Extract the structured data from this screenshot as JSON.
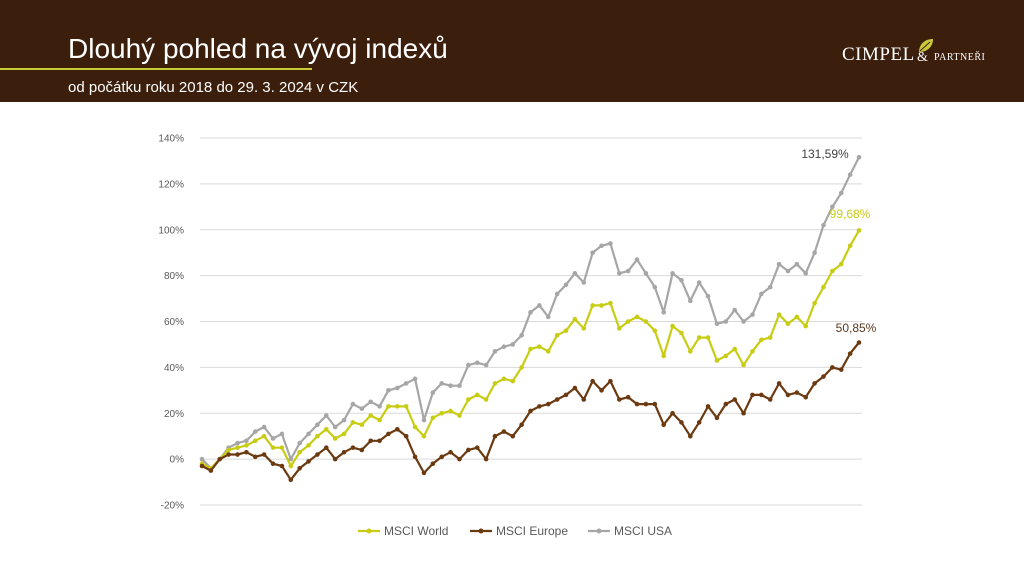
{
  "header": {
    "title": "Dlouhý pohled na vývoj indexů",
    "subtitle": "od počátku roku 2018  do 29. 3. 2024 v CZK",
    "logo_main": "CIMPEL",
    "logo_amp": "&",
    "logo_sub": "PARTNEŘI"
  },
  "colors": {
    "header_bg": "#3b1e0c",
    "accent": "#c9c93a",
    "world": "#c8cc13",
    "europe": "#6b3a10",
    "usa": "#a6a6a6"
  },
  "chart_data": {
    "type": "line",
    "title": "",
    "xlabel": "",
    "ylabel": "",
    "ylim": [
      -20,
      140
    ],
    "yticks": [
      -20,
      0,
      20,
      40,
      60,
      80,
      100,
      120,
      140
    ],
    "ytick_labels": [
      "-20%",
      "0%",
      "20%",
      "40%",
      "60%",
      "80%",
      "100%",
      "120%",
      "140%"
    ],
    "grid": true,
    "legend": "bottom",
    "series": [
      {
        "name": "MSCI World",
        "color": "#c8cc13",
        "values": [
          -2,
          -4,
          0,
          4,
          5,
          6,
          8,
          10,
          5,
          5,
          -3,
          3,
          6,
          10,
          13,
          9,
          11,
          16,
          15,
          19,
          17,
          23,
          23,
          23,
          14,
          10,
          18,
          20,
          21,
          19,
          26,
          28,
          26,
          33,
          35,
          34,
          40,
          48,
          49,
          47,
          54,
          56,
          61,
          57,
          67,
          67,
          68,
          57,
          60,
          62,
          60,
          56,
          45,
          58,
          55,
          47,
          53,
          53,
          43,
          45,
          48,
          41,
          47,
          52,
          53,
          63,
          59,
          62,
          58,
          68,
          75,
          82,
          85,
          93,
          99.68
        ],
        "end_label": "99,68%"
      },
      {
        "name": "MSCI Europe",
        "color": "#6b3a10",
        "values": [
          -3,
          -5,
          0,
          2,
          2,
          3,
          1,
          2,
          -2,
          -3,
          -9,
          -4,
          -1,
          2,
          5,
          0,
          3,
          5,
          4,
          8,
          8,
          11,
          13,
          10,
          1,
          -6,
          -2,
          1,
          3,
          0,
          4,
          5,
          0,
          10,
          12,
          10,
          15,
          21,
          23,
          24,
          26,
          28,
          31,
          26,
          34,
          30,
          34,
          26,
          27,
          24,
          24,
          24,
          15,
          20,
          16,
          10,
          16,
          23,
          18,
          24,
          26,
          20,
          28,
          28,
          26,
          33,
          28,
          29,
          27,
          33,
          36,
          40,
          39,
          46,
          50.85
        ],
        "end_label": "50,85%"
      },
      {
        "name": "MSCI USA",
        "color": "#a6a6a6",
        "values": [
          0,
          -4,
          0,
          5,
          7,
          8,
          12,
          14,
          9,
          11,
          0,
          7,
          11,
          15,
          19,
          14,
          17,
          24,
          22,
          25,
          23,
          30,
          31,
          33,
          35,
          17,
          29,
          33,
          32,
          32,
          41,
          42,
          41,
          47,
          49,
          50,
          54,
          64,
          67,
          62,
          72,
          76,
          81,
          77,
          90,
          93,
          94,
          81,
          82,
          87,
          81,
          75,
          64,
          81,
          78,
          69,
          77,
          71,
          59,
          60,
          65,
          60,
          63,
          72,
          75,
          85,
          82,
          85,
          81,
          90,
          102,
          110,
          116,
          124,
          131.59
        ],
        "end_label": "131,59%"
      }
    ]
  }
}
